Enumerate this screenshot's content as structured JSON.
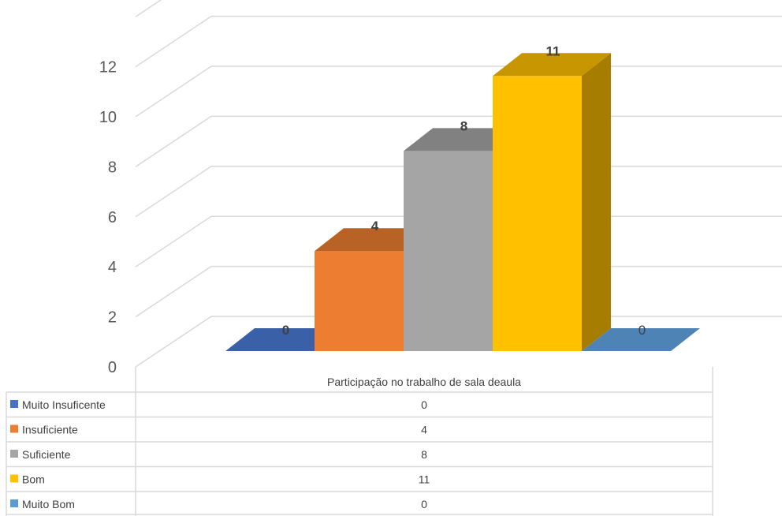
{
  "chart_data": {
    "type": "bar",
    "style": "3d-clustered-column-with-data-table",
    "categories": [
      "Participação no trabalho de sala deaula"
    ],
    "series": [
      {
        "name": "Muito Insuficente",
        "values": [
          0
        ],
        "color": "#4472C4"
      },
      {
        "name": "Insuficiente",
        "values": [
          4
        ],
        "color": "#ED7D31"
      },
      {
        "name": "Suficiente",
        "values": [
          8
        ],
        "color": "#A5A5A5"
      },
      {
        "name": "Bom",
        "values": [
          11
        ],
        "color": "#FFC000"
      },
      {
        "name": "Muito Bom",
        "values": [
          0
        ],
        "color": "#5B9BD5"
      }
    ],
    "ylim": [
      0,
      12
    ],
    "yticks": [
      "0",
      "2",
      "4",
      "6",
      "8",
      "10",
      "12"
    ],
    "grid": true,
    "legend": "data-table-left"
  }
}
